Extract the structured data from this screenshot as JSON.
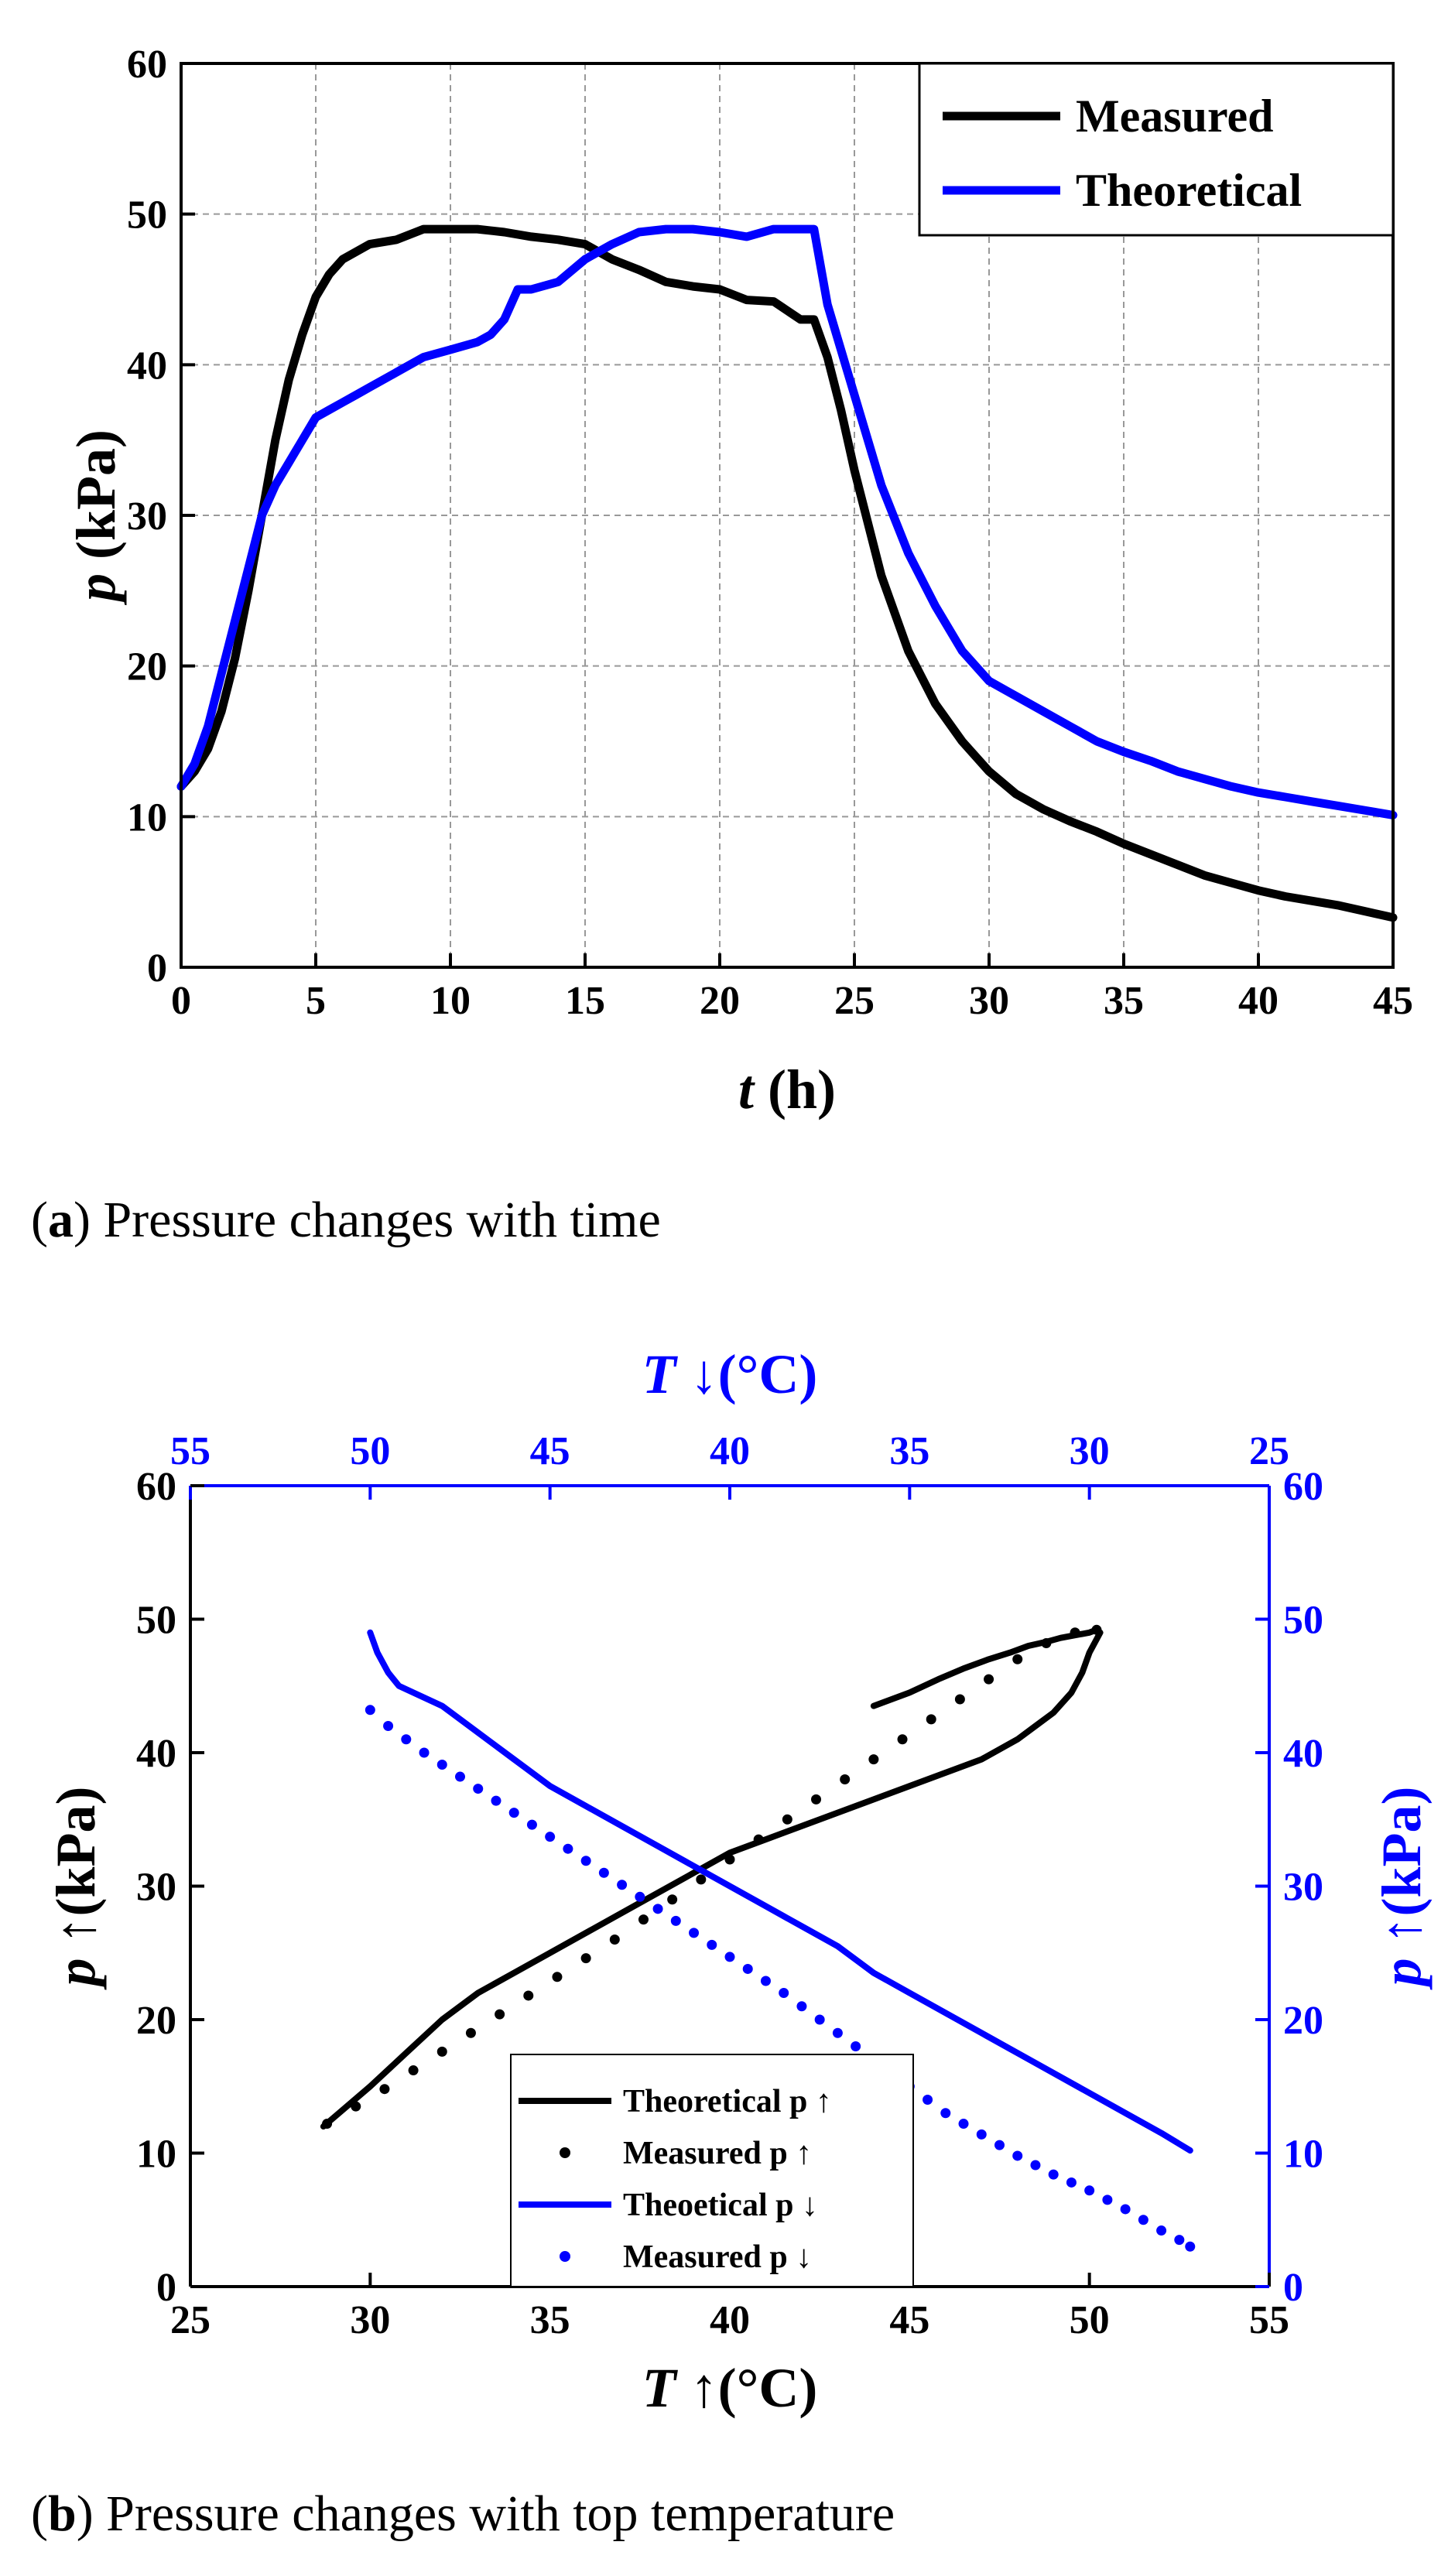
{
  "chart_data": [
    {
      "type": "line",
      "caption": {
        "label": "a",
        "text": "Pressure changes with time"
      },
      "xlabel_var": "t",
      "xlabel_unit": " (h)",
      "ylabel_var": "p",
      "ylabel_unit": " (kPa)",
      "xlim": [
        0,
        45
      ],
      "ylim": [
        0,
        60
      ],
      "xticks": [
        0,
        5,
        10,
        15,
        20,
        25,
        30,
        35,
        40,
        45
      ],
      "yticks": [
        0,
        10,
        20,
        30,
        40,
        50,
        60
      ],
      "grid": true,
      "legend_position": "top-right",
      "series": [
        {
          "name": "Measured",
          "color": "#000000",
          "x": [
            0,
            0.5,
            1,
            1.5,
            2,
            2.5,
            3,
            3.5,
            4,
            4.5,
            5,
            5.5,
            6,
            6.5,
            7,
            8,
            9,
            10,
            11,
            12,
            13,
            14,
            15,
            16,
            17,
            18,
            19,
            20,
            21,
            22,
            23,
            23.5,
            24,
            24.5,
            25,
            26,
            27,
            28,
            29,
            30,
            31,
            32,
            33,
            34,
            35,
            36,
            37,
            38,
            39,
            40,
            41,
            42,
            43,
            44,
            45
          ],
          "y": [
            12,
            13,
            14.5,
            17,
            20.5,
            25,
            30,
            35,
            39,
            42,
            44.5,
            46,
            47,
            47.5,
            48,
            48.3,
            49,
            49,
            49,
            48.8,
            48.5,
            48.3,
            48,
            47,
            46.3,
            45.5,
            45.2,
            45,
            44.3,
            44.2,
            43,
            43,
            40.5,
            37,
            33,
            26,
            21,
            17.5,
            15,
            13,
            11.5,
            10.5,
            9.7,
            9,
            8.2,
            7.5,
            6.8,
            6.1,
            5.6,
            5.1,
            4.7,
            4.4,
            4.1,
            3.7,
            3.3
          ]
        },
        {
          "name": "Theoretical",
          "color": "#0000ff",
          "x": [
            0,
            0.5,
            1,
            1.5,
            2,
            2.5,
            3,
            3.5,
            4,
            4.5,
            5,
            5.5,
            6,
            6.5,
            7,
            8,
            9,
            10,
            11,
            11.5,
            12,
            12.5,
            13,
            14,
            15,
            16,
            17,
            18,
            19,
            20,
            21,
            22,
            23,
            23.5,
            24,
            24.5,
            25,
            26,
            27,
            28,
            29,
            30,
            31,
            32,
            33,
            34,
            35,
            36,
            37,
            38,
            39,
            40,
            41,
            42,
            43,
            44,
            45
          ],
          "y": [
            12,
            13.5,
            16,
            19.5,
            23,
            26.5,
            30,
            32,
            33.5,
            35,
            36.5,
            37,
            37.5,
            38,
            38.5,
            39.5,
            40.5,
            41,
            41.5,
            42,
            43,
            45,
            45,
            45.5,
            47,
            48,
            48.8,
            49,
            49,
            48.8,
            48.5,
            49,
            49,
            49,
            44,
            41,
            38,
            32,
            27.5,
            24,
            21,
            19,
            18,
            17,
            16,
            15,
            14.3,
            13.7,
            13,
            12.5,
            12,
            11.6,
            11.3,
            11,
            10.7,
            10.4,
            10.1
          ]
        }
      ]
    },
    {
      "type": "scatter",
      "caption": {
        "label": "b",
        "text": "Pressure changes with top temperature"
      },
      "xlabel_var": "T",
      "xlabel_unit": " ↑(°C)",
      "top_xlabel_var": "T",
      "top_xlabel_unit": " ↓(°C)",
      "ylabel_var": "p",
      "ylabel_unit": " ↑(kPa)",
      "right_ylabel_var": "p",
      "right_ylabel_unit": " ↑(kPa)",
      "xlim": [
        25,
        55
      ],
      "top_xlim": [
        55,
        25
      ],
      "ylim": [
        0,
        60
      ],
      "right_ylim": [
        0,
        60
      ],
      "xticks": [
        25,
        30,
        35,
        40,
        45,
        50,
        55
      ],
      "top_xticks": [
        55,
        50,
        45,
        40,
        35,
        30,
        25
      ],
      "yticks": [
        0,
        10,
        20,
        30,
        40,
        50,
        60
      ],
      "grid": false,
      "legend_position": "bottom-center",
      "series": [
        {
          "name": "Theoretical p ↑",
          "color": "#000000",
          "kind": "line",
          "axis": "bottom",
          "x": [
            28.7,
            30,
            31,
            32,
            33,
            34,
            35,
            36,
            37,
            38,
            39,
            40,
            41,
            42,
            43,
            44,
            45,
            46,
            47,
            48,
            48.5,
            49,
            49.5,
            49.8,
            50,
            50.2,
            50.3,
            50.2,
            50,
            49.6,
            49.2,
            48.8,
            48.3,
            47.8,
            47.2,
            46.5,
            45.8,
            45,
            44
          ],
          "y": [
            12,
            15,
            17.5,
            20,
            22,
            23.5,
            25,
            26.5,
            28,
            29.5,
            31,
            32.5,
            33.5,
            34.5,
            35.5,
            36.5,
            37.5,
            38.5,
            39.5,
            41,
            42,
            43,
            44.5,
            46,
            47.5,
            48.5,
            49,
            49.2,
            49,
            48.8,
            48.6,
            48.3,
            48,
            47.5,
            47,
            46.3,
            45.5,
            44.5,
            43.5
          ]
        },
        {
          "name": "Measured p ↑",
          "color": "#000000",
          "kind": "dots",
          "axis": "bottom",
          "x": [
            28.8,
            29.6,
            30.4,
            31.2,
            32.0,
            32.8,
            33.6,
            34.4,
            35.2,
            36.0,
            36.8,
            37.6,
            38.4,
            39.2,
            40.0,
            40.8,
            41.6,
            42.4,
            43.2,
            44.0,
            44.8,
            45.6,
            46.4,
            47.2,
            48.0,
            48.8,
            49.6,
            50.2
          ],
          "y": [
            12.2,
            13.5,
            14.8,
            16.2,
            17.6,
            19.0,
            20.4,
            21.8,
            23.2,
            24.6,
            26.0,
            27.5,
            29.0,
            30.5,
            32.0,
            33.5,
            35.0,
            36.5,
            38.0,
            39.5,
            41.0,
            42.5,
            44.0,
            45.5,
            47.0,
            48.2,
            49.0,
            49.2
          ]
        },
        {
          "name": "Theoetical p ↓",
          "color": "#0000ff",
          "kind": "line",
          "axis": "top",
          "x": [
            50,
            49.8,
            49.5,
            49.2,
            48.8,
            48,
            47,
            46,
            45,
            44,
            43,
            42,
            41,
            40,
            39,
            38,
            37,
            36,
            35,
            34,
            33,
            32,
            31,
            30,
            29,
            28,
            27.2
          ],
          "y": [
            49,
            47.5,
            46,
            45,
            44.5,
            43.5,
            41.5,
            39.5,
            37.5,
            36,
            34.5,
            33,
            31.5,
            30,
            28.5,
            27,
            25.5,
            23.5,
            22,
            20.5,
            19,
            17.5,
            16,
            14.5,
            13,
            11.5,
            10.2
          ]
        },
        {
          "name": "Measured p ↓",
          "color": "#0000ff",
          "kind": "dots",
          "axis": "top",
          "x": [
            50,
            49.5,
            49,
            48.5,
            48,
            47.5,
            47,
            46.5,
            46,
            45.5,
            45,
            44.5,
            44,
            43.5,
            43,
            42.5,
            42,
            41.5,
            41,
            40.5,
            40,
            39.5,
            39,
            38.5,
            38,
            37.5,
            37,
            36.5,
            36,
            35.5,
            35,
            34.5,
            34,
            33.5,
            33,
            32.5,
            32,
            31.5,
            31,
            30.5,
            30,
            29.5,
            29,
            28.5,
            28,
            27.5,
            27.2
          ],
          "y": [
            43.2,
            42,
            41,
            40,
            39.1,
            38.2,
            37.3,
            36.4,
            35.5,
            34.6,
            33.7,
            32.8,
            31.9,
            31,
            30.1,
            29.2,
            28.3,
            27.4,
            26.5,
            25.6,
            24.7,
            23.8,
            22.9,
            22,
            21,
            20,
            19,
            18,
            17,
            16,
            15,
            14,
            13,
            12.2,
            11.4,
            10.6,
            9.8,
            9.1,
            8.4,
            7.8,
            7.2,
            6.5,
            5.8,
            5.0,
            4.2,
            3.5,
            3.0
          ]
        }
      ]
    }
  ]
}
